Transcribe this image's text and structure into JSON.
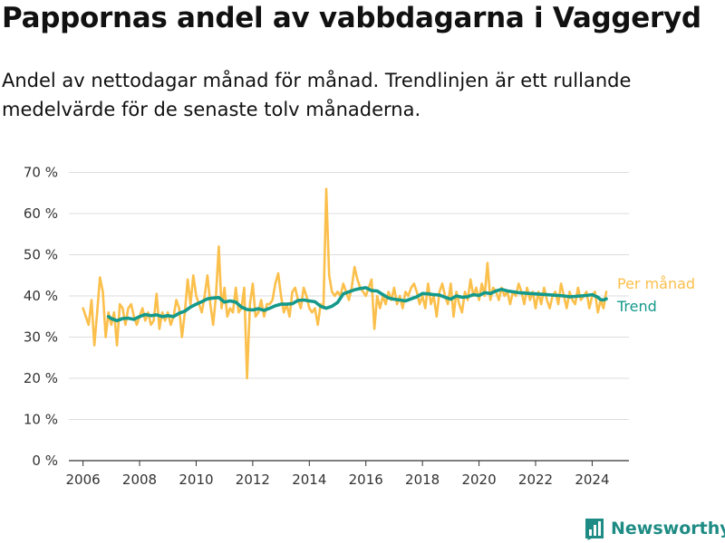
{
  "header": {
    "title": "Pappornas andel av vabbdagarna i Vaggeryd",
    "subtitle": "Andel av nettodagar månad för månad. Trendlinjen är ett rullande medelvärde för de senaste tolv månaderna."
  },
  "brand": {
    "name": "Newsworthy",
    "icon": "bar-chart-logo-icon",
    "color": "#1e8c84"
  },
  "chart_data": {
    "type": "line",
    "title": "",
    "xlabel": "",
    "ylabel": "",
    "xlim": [
      2005.5,
      2025.3
    ],
    "ylim": [
      0,
      70
    ],
    "x_ticks": [
      "2006",
      "2008",
      "2010",
      "2012",
      "2014",
      "2016",
      "2018",
      "2020",
      "2022",
      "2024"
    ],
    "y_ticks": [
      "0 %",
      "10 %",
      "20 %",
      "30 %",
      "40 %",
      "50 %",
      "60 %",
      "70 %"
    ],
    "grid": "horizontal",
    "legend": "right, inline at line ends",
    "series": [
      {
        "name": "Per månad",
        "color": "#fbbf4b",
        "points": [
          [
            2006.0,
            37
          ],
          [
            2006.1,
            35
          ],
          [
            2006.2,
            33
          ],
          [
            2006.3,
            39
          ],
          [
            2006.4,
            28
          ],
          [
            2006.5,
            36
          ],
          [
            2006.6,
            44.5
          ],
          [
            2006.7,
            41
          ],
          [
            2006.8,
            30
          ],
          [
            2006.9,
            36
          ],
          [
            2007.0,
            33
          ],
          [
            2007.1,
            36
          ],
          [
            2007.2,
            28
          ],
          [
            2007.3,
            38
          ],
          [
            2007.4,
            37
          ],
          [
            2007.5,
            33
          ],
          [
            2007.6,
            37
          ],
          [
            2007.7,
            38
          ],
          [
            2007.8,
            35
          ],
          [
            2007.9,
            33
          ],
          [
            2008.0,
            35
          ],
          [
            2008.1,
            37
          ],
          [
            2008.2,
            34
          ],
          [
            2008.3,
            36
          ],
          [
            2008.4,
            33
          ],
          [
            2008.5,
            34
          ],
          [
            2008.6,
            40.5
          ],
          [
            2008.7,
            32
          ],
          [
            2008.8,
            36
          ],
          [
            2008.9,
            34
          ],
          [
            2009.0,
            36
          ],
          [
            2009.1,
            33
          ],
          [
            2009.2,
            35
          ],
          [
            2009.3,
            39
          ],
          [
            2009.4,
            37
          ],
          [
            2009.5,
            30
          ],
          [
            2009.6,
            36
          ],
          [
            2009.7,
            44
          ],
          [
            2009.8,
            38
          ],
          [
            2009.9,
            45
          ],
          [
            2010.0,
            40
          ],
          [
            2010.1,
            38
          ],
          [
            2010.2,
            36
          ],
          [
            2010.3,
            40
          ],
          [
            2010.4,
            45
          ],
          [
            2010.5,
            38
          ],
          [
            2010.6,
            33
          ],
          [
            2010.7,
            40
          ],
          [
            2010.8,
            52
          ],
          [
            2010.9,
            37
          ],
          [
            2011.0,
            42
          ],
          [
            2011.1,
            35
          ],
          [
            2011.2,
            37
          ],
          [
            2011.3,
            36
          ],
          [
            2011.4,
            42
          ],
          [
            2011.5,
            36
          ],
          [
            2011.6,
            37
          ],
          [
            2011.7,
            42
          ],
          [
            2011.8,
            20
          ],
          [
            2011.9,
            38
          ],
          [
            2012.0,
            43
          ],
          [
            2012.1,
            35
          ],
          [
            2012.2,
            36
          ],
          [
            2012.3,
            39
          ],
          [
            2012.4,
            35
          ],
          [
            2012.5,
            38
          ],
          [
            2012.6,
            38
          ],
          [
            2012.7,
            39
          ],
          [
            2012.8,
            43
          ],
          [
            2012.9,
            45.5
          ],
          [
            2013.0,
            40
          ],
          [
            2013.1,
            36
          ],
          [
            2013.2,
            38
          ],
          [
            2013.3,
            35
          ],
          [
            2013.4,
            41
          ],
          [
            2013.5,
            42
          ],
          [
            2013.6,
            39
          ],
          [
            2013.7,
            37
          ],
          [
            2013.8,
            42
          ],
          [
            2013.9,
            40
          ],
          [
            2014.0,
            37
          ],
          [
            2014.1,
            36
          ],
          [
            2014.2,
            37
          ],
          [
            2014.3,
            33
          ],
          [
            2014.4,
            38
          ],
          [
            2014.5,
            37
          ],
          [
            2014.6,
            66
          ],
          [
            2014.7,
            45
          ],
          [
            2014.8,
            41
          ],
          [
            2014.9,
            40
          ],
          [
            2015.0,
            41
          ],
          [
            2015.1,
            40
          ],
          [
            2015.2,
            43
          ],
          [
            2015.3,
            41
          ],
          [
            2015.4,
            39
          ],
          [
            2015.5,
            42
          ],
          [
            2015.6,
            47
          ],
          [
            2015.7,
            44
          ],
          [
            2015.8,
            42
          ],
          [
            2015.9,
            41
          ],
          [
            2016.0,
            40
          ],
          [
            2016.1,
            42
          ],
          [
            2016.2,
            44
          ],
          [
            2016.3,
            32
          ],
          [
            2016.4,
            40
          ],
          [
            2016.5,
            37
          ],
          [
            2016.6,
            40
          ],
          [
            2016.7,
            38
          ],
          [
            2016.8,
            41
          ],
          [
            2016.9,
            39
          ],
          [
            2017.0,
            42
          ],
          [
            2017.1,
            38
          ],
          [
            2017.2,
            40
          ],
          [
            2017.3,
            37
          ],
          [
            2017.4,
            41
          ],
          [
            2017.5,
            40
          ],
          [
            2017.6,
            42
          ],
          [
            2017.7,
            43
          ],
          [
            2017.8,
            41
          ],
          [
            2017.9,
            38
          ],
          [
            2018.0,
            40
          ],
          [
            2018.1,
            37
          ],
          [
            2018.2,
            43
          ],
          [
            2018.3,
            38
          ],
          [
            2018.4,
            40
          ],
          [
            2018.5,
            35
          ],
          [
            2018.6,
            41
          ],
          [
            2018.7,
            43
          ],
          [
            2018.8,
            40
          ],
          [
            2018.9,
            38
          ],
          [
            2019.0,
            43
          ],
          [
            2019.1,
            35
          ],
          [
            2019.2,
            41
          ],
          [
            2019.3,
            38
          ],
          [
            2019.4,
            36
          ],
          [
            2019.5,
            41
          ],
          [
            2019.6,
            39
          ],
          [
            2019.7,
            44
          ],
          [
            2019.8,
            40
          ],
          [
            2019.9,
            42
          ],
          [
            2020.0,
            39
          ],
          [
            2020.1,
            43
          ],
          [
            2020.2,
            40
          ],
          [
            2020.3,
            48
          ],
          [
            2020.4,
            39
          ],
          [
            2020.5,
            42
          ],
          [
            2020.6,
            41
          ],
          [
            2020.7,
            39
          ],
          [
            2020.8,
            42
          ],
          [
            2020.9,
            40
          ],
          [
            2021.0,
            41
          ],
          [
            2021.1,
            38
          ],
          [
            2021.2,
            41
          ],
          [
            2021.3,
            40
          ],
          [
            2021.4,
            43
          ],
          [
            2021.5,
            41
          ],
          [
            2021.6,
            38
          ],
          [
            2021.7,
            42
          ],
          [
            2021.8,
            39
          ],
          [
            2021.9,
            41
          ],
          [
            2022.0,
            37
          ],
          [
            2022.1,
            41
          ],
          [
            2022.2,
            38
          ],
          [
            2022.3,
            42
          ],
          [
            2022.4,
            39
          ],
          [
            2022.5,
            37
          ],
          [
            2022.6,
            40
          ],
          [
            2022.7,
            41
          ],
          [
            2022.8,
            38
          ],
          [
            2022.9,
            43
          ],
          [
            2023.0,
            40
          ],
          [
            2023.1,
            37
          ],
          [
            2023.2,
            41
          ],
          [
            2023.3,
            39
          ],
          [
            2023.4,
            38
          ],
          [
            2023.5,
            42
          ],
          [
            2023.6,
            39
          ],
          [
            2023.7,
            40
          ],
          [
            2023.8,
            41
          ],
          [
            2023.9,
            37
          ],
          [
            2024.0,
            40
          ],
          [
            2024.1,
            41
          ],
          [
            2024.2,
            36
          ],
          [
            2024.3,
            39
          ],
          [
            2024.4,
            37
          ],
          [
            2024.5,
            41
          ]
        ]
      },
      {
        "name": "Trend",
        "color": "#14998b",
        "points": [
          [
            2006.9,
            35
          ],
          [
            2007.0,
            34.5
          ],
          [
            2007.2,
            34
          ],
          [
            2007.4,
            34.5
          ],
          [
            2007.6,
            34.6
          ],
          [
            2007.8,
            34.3
          ],
          [
            2008.0,
            35
          ],
          [
            2008.2,
            35.5
          ],
          [
            2008.4,
            35.2
          ],
          [
            2008.6,
            35.4
          ],
          [
            2008.8,
            35
          ],
          [
            2009.0,
            35.2
          ],
          [
            2009.2,
            35
          ],
          [
            2009.4,
            35.8
          ],
          [
            2009.6,
            36.3
          ],
          [
            2009.8,
            37.3
          ],
          [
            2010.0,
            38
          ],
          [
            2010.2,
            38.6
          ],
          [
            2010.4,
            39.3
          ],
          [
            2010.6,
            39.5
          ],
          [
            2010.8,
            39.6
          ],
          [
            2011.0,
            38.5
          ],
          [
            2011.2,
            38.8
          ],
          [
            2011.4,
            38.5
          ],
          [
            2011.6,
            37.3
          ],
          [
            2011.8,
            36.7
          ],
          [
            2012.0,
            36.6
          ],
          [
            2012.2,
            36.9
          ],
          [
            2012.4,
            36.5
          ],
          [
            2012.6,
            37
          ],
          [
            2012.8,
            37.6
          ],
          [
            2013.0,
            38
          ],
          [
            2013.2,
            38
          ],
          [
            2013.4,
            38.1
          ],
          [
            2013.6,
            38.9
          ],
          [
            2013.8,
            39
          ],
          [
            2014.0,
            38.8
          ],
          [
            2014.2,
            38.6
          ],
          [
            2014.4,
            37.5
          ],
          [
            2014.6,
            37
          ],
          [
            2014.8,
            37.5
          ],
          [
            2015.0,
            38.4
          ],
          [
            2015.2,
            40.5
          ],
          [
            2015.4,
            41
          ],
          [
            2015.6,
            41.5
          ],
          [
            2015.8,
            41.8
          ],
          [
            2016.0,
            42
          ],
          [
            2016.2,
            41.3
          ],
          [
            2016.4,
            41.2
          ],
          [
            2016.6,
            40.3
          ],
          [
            2016.8,
            39.5
          ],
          [
            2017.0,
            39.2
          ],
          [
            2017.2,
            39
          ],
          [
            2017.4,
            38.8
          ],
          [
            2017.6,
            39.3
          ],
          [
            2017.8,
            39.8
          ],
          [
            2018.0,
            40.6
          ],
          [
            2018.2,
            40.5
          ],
          [
            2018.4,
            40.3
          ],
          [
            2018.6,
            40.2
          ],
          [
            2018.8,
            39.7
          ],
          [
            2019.0,
            39.2
          ],
          [
            2019.2,
            40
          ],
          [
            2019.4,
            39.7
          ],
          [
            2019.6,
            39.8
          ],
          [
            2019.8,
            40.3
          ],
          [
            2020.0,
            40.1
          ],
          [
            2020.2,
            40.8
          ],
          [
            2020.4,
            40.6
          ],
          [
            2020.6,
            41.2
          ],
          [
            2020.8,
            41.6
          ],
          [
            2021.0,
            41.2
          ],
          [
            2021.2,
            41
          ],
          [
            2021.4,
            40.8
          ],
          [
            2021.6,
            40.7
          ],
          [
            2021.8,
            40.6
          ],
          [
            2022.0,
            40.5
          ],
          [
            2022.2,
            40.4
          ],
          [
            2022.4,
            40.3
          ],
          [
            2022.6,
            40.2
          ],
          [
            2022.8,
            40.1
          ],
          [
            2023.0,
            40
          ],
          [
            2023.2,
            39.8
          ],
          [
            2023.4,
            39.9
          ],
          [
            2023.6,
            40
          ],
          [
            2023.8,
            40.1
          ],
          [
            2024.0,
            40.3
          ],
          [
            2024.2,
            39.7
          ],
          [
            2024.3,
            39.1
          ],
          [
            2024.4,
            39
          ],
          [
            2024.5,
            39.3
          ]
        ]
      }
    ]
  }
}
